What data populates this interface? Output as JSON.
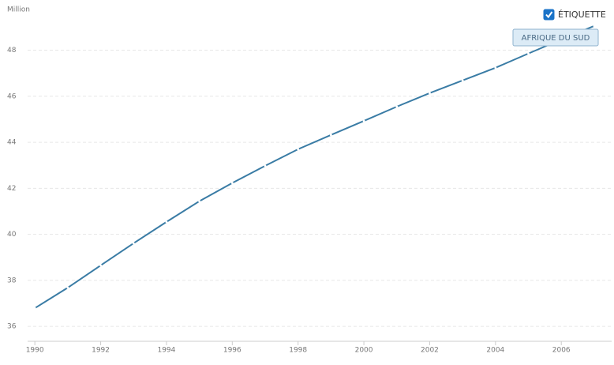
{
  "chart_data": {
    "type": "line",
    "y_unit_label": "Million",
    "x": [
      1990,
      1991,
      1992,
      1993,
      1994,
      1995,
      1996,
      1997,
      1998,
      1999,
      2000,
      2001,
      2002,
      2003,
      2004,
      2005,
      2006,
      2007
    ],
    "series": [
      {
        "name": "AFRIQUE DU SUD",
        "color": "#3a7ca5",
        "values": [
          36.79,
          37.68,
          38.65,
          39.61,
          40.54,
          41.44,
          42.23,
          42.98,
          43.7,
          44.32,
          44.93,
          45.55,
          46.14,
          46.69,
          47.24,
          47.86,
          48.47,
          49.06
        ]
      }
    ],
    "xlim": [
      1989.78,
      2007.53
    ],
    "ylim": [
      35.35,
      49.5
    ],
    "xticks": [
      1990,
      1992,
      1994,
      1996,
      1998,
      2000,
      2002,
      2004,
      2006
    ],
    "yticks": [
      36,
      38,
      40,
      42,
      44,
      46,
      48
    ],
    "grid": true,
    "label_toggle": {
      "label": "ÉTIQUETTE",
      "checked": true
    }
  }
}
